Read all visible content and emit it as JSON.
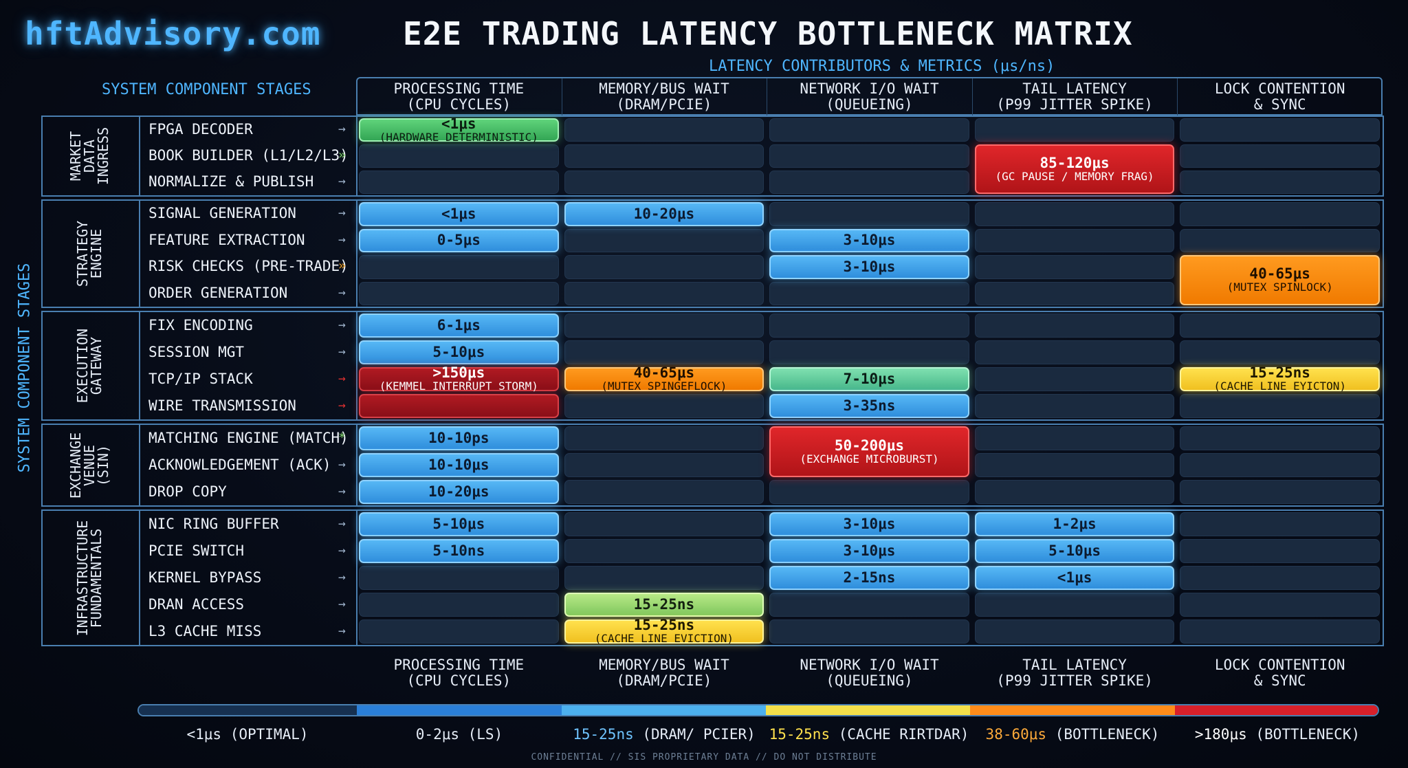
{
  "brand": "hftAdvisory.com",
  "title": "E2E TRADING LATENCY BOTTLENECK MATRIX",
  "subtitle": "LATENCY CONTRIBUTORS & METRICS (μs/ns)",
  "row_axis_label": "SYSTEM COMPONENT STAGES",
  "confidential": "CONFIDENTIAL // SIS PROPRIETARY DATA // DO NOT DISTRIBUTE",
  "chart_data": {
    "type": "heatmap",
    "title": "E2E TRADING LATENCY BOTTLENECK MATRIX",
    "columns": [
      {
        "line1": "PROCESSING TIME",
        "line2": "(CPU CYCLES)"
      },
      {
        "line1": "MEMORY/BUS WAIT",
        "line2": "(DRAM/PCIE)"
      },
      {
        "line1": "NETWORK I/O WAIT",
        "line2": "(QUEUEING)"
      },
      {
        "line1": "TAIL LATENCY",
        "line2": "(P99 JITTER SPIKE)"
      },
      {
        "line1": "LOCK CONTENTION",
        "line2": "& SYNC"
      }
    ],
    "groups": [
      {
        "lines": [
          "MARKET",
          "DATA",
          "INGRESS"
        ],
        "rows": [
          "FPGA DECODER",
          "BOOK BUILDER (L1/L2/L3)",
          "NORMALIZE & PUBLISH"
        ]
      },
      {
        "lines": [
          "STRATEGY",
          "ENGINE"
        ],
        "rows": [
          "SIGNAL GENERATION",
          "FEATURE EXTRACTION",
          "RISK CHECKS (PRE-TRADE)",
          "ORDER GENERATION"
        ]
      },
      {
        "lines": [
          "EXECUTION",
          "GATEWAY"
        ],
        "rows": [
          "FIX ENCODING",
          "SESSION MGT",
          "TCP/IP STACK",
          "WIRE TRANSMISSION"
        ]
      },
      {
        "lines": [
          "EXCHANGE",
          "VENUE",
          "(SIN)"
        ],
        "rows": [
          "MATCHING ENGINE (MATCH)",
          "ACKNOWLEDGEMENT (ACK)",
          "DROP COPY"
        ]
      },
      {
        "lines": [
          "INFRASTRUCTURE",
          "FUNDAMENTALS"
        ],
        "rows": [
          "NIC RING BUFFER",
          "PCIE SWITCH",
          "KERNEL BYPASS",
          "DRAN ACCESS",
          "L3 CACHE MISS"
        ]
      }
    ],
    "row_arrows": [
      "→",
      "»",
      "→",
      "→",
      "→",
      "»",
      "→",
      "→",
      "→",
      "→",
      "→",
      "*",
      "→",
      "→",
      "→",
      "→",
      "→",
      "→",
      "→"
    ],
    "arrow_colors": [
      "#9fb4cc",
      "#7fd06a",
      "#9fb4cc",
      "#9fb4cc",
      "#9fb4cc",
      "#f0a020",
      "#9fb4cc",
      "#9fb4cc",
      "#9fb4cc",
      "#e03030",
      "#e03030",
      "#7fd06a",
      "#9fb4cc",
      "#9fb4cc",
      "#9fb4cc",
      "#9fb4cc",
      "#9fb4cc",
      "#9fb4cc",
      "#9fb4cc"
    ],
    "cells": [
      {
        "row": 0,
        "col": 0,
        "span": 1,
        "value": "<1μs",
        "note": "(HARDWARE DETERMINISTIC)",
        "color": "green"
      },
      {
        "row": 1,
        "col": 3,
        "span": 2,
        "value": "85-120μs",
        "note": "(GC PAUSE / MEMORY FRAG)",
        "color": "red"
      },
      {
        "row": 3,
        "col": 0,
        "span": 1,
        "value": "<1μs",
        "note": "",
        "color": "blue"
      },
      {
        "row": 3,
        "col": 1,
        "span": 1,
        "value": "10-20μs",
        "note": "",
        "color": "blue"
      },
      {
        "row": 4,
        "col": 0,
        "span": 1,
        "value": "0-5μs",
        "note": "",
        "color": "blue"
      },
      {
        "row": 4,
        "col": 2,
        "span": 1,
        "value": "3-10μs",
        "note": "",
        "color": "blue"
      },
      {
        "row": 5,
        "col": 2,
        "span": 1,
        "value": "3-10μs",
        "note": "",
        "color": "blue"
      },
      {
        "row": 5,
        "col": 4,
        "span": 2,
        "value": "40-65μs",
        "note": "(MUTEX SPINLOCK)",
        "color": "orange"
      },
      {
        "row": 7,
        "col": 0,
        "span": 1,
        "value": "6-1μs",
        "note": "",
        "color": "blue"
      },
      {
        "row": 8,
        "col": 0,
        "span": 1,
        "value": "5-10μs",
        "note": "",
        "color": "blue"
      },
      {
        "row": 9,
        "col": 0,
        "span": 1,
        "value": ">150μs",
        "note": "(KEMMEL INTERRUPT STORM)",
        "color": "darkred"
      },
      {
        "row": 10,
        "col": 0,
        "span": 1,
        "value": "",
        "note": "",
        "color": "darkred"
      },
      {
        "row": 9,
        "col": 1,
        "span": 1,
        "value": "40-65μs",
        "note": "(MUTEX SPINGEFLOCK)",
        "color": "orange"
      },
      {
        "row": 9,
        "col": 2,
        "span": 1,
        "value": "7-10μs",
        "note": "",
        "color": "teal"
      },
      {
        "row": 10,
        "col": 2,
        "span": 1,
        "value": "3-35ns",
        "note": "",
        "color": "blue"
      },
      {
        "row": 9,
        "col": 4,
        "span": 1,
        "value": "15-25ns",
        "note": "(CACHE LINE EYICTON)",
        "color": "yellow"
      },
      {
        "row": 11,
        "col": 0,
        "span": 1,
        "value": "10-10ps",
        "note": "",
        "color": "blue"
      },
      {
        "row": 11,
        "col": 2,
        "span": 2,
        "value": "50-200μs",
        "note": "(EXCHANGE MICROBURST)",
        "color": "red"
      },
      {
        "row": 12,
        "col": 0,
        "span": 1,
        "value": "10-10μs",
        "note": "",
        "color": "blue"
      },
      {
        "row": 13,
        "col": 0,
        "span": 1,
        "value": "10-20μs",
        "note": "",
        "color": "blue"
      },
      {
        "row": 14,
        "col": 0,
        "span": 1,
        "value": "5-10μs",
        "note": "",
        "color": "blue"
      },
      {
        "row": 14,
        "col": 2,
        "span": 1,
        "value": "3-10μs",
        "note": "",
        "color": "blue"
      },
      {
        "row": 14,
        "col": 3,
        "span": 1,
        "value": "1-2μs",
        "note": "",
        "color": "blue"
      },
      {
        "row": 15,
        "col": 0,
        "span": 1,
        "value": "5-10ns",
        "note": "",
        "color": "blue"
      },
      {
        "row": 15,
        "col": 2,
        "span": 1,
        "value": "3-10μs",
        "note": "",
        "color": "blue"
      },
      {
        "row": 15,
        "col": 3,
        "span": 1,
        "value": "5-10μs",
        "note": "",
        "color": "blue"
      },
      {
        "row": 16,
        "col": 2,
        "span": 1,
        "value": "2-15ns",
        "note": "",
        "color": "blue"
      },
      {
        "row": 16,
        "col": 3,
        "span": 1,
        "value": "<1μs",
        "note": "",
        "color": "blue"
      },
      {
        "row": 17,
        "col": 1,
        "span": 1,
        "value": "15-25ns",
        "note": "",
        "color": "lime"
      },
      {
        "row": 18,
        "col": 1,
        "span": 1,
        "value": "15-25ns",
        "note": "(CACHE LINE EVICTION)",
        "color": "yellow"
      }
    ],
    "legend": [
      {
        "value": "<1μs",
        "label": " (OPTIMAL)",
        "color": "#e6edf7",
        "bar": "#163050"
      },
      {
        "value": "0-2μs",
        "label": " (LS)",
        "color": "#e6edf7",
        "bar": "#2a7fd8"
      },
      {
        "value": "15-25ns",
        "label": " (DRAM/ PCIER)",
        "color": "#6fc4ff",
        "bar": "#4cb0ee"
      },
      {
        "value": "15-25ns",
        "label": " (CACHE RIRTDAR)",
        "color": "#ffe14d",
        "bar": "#f4e04a"
      },
      {
        "value": "38-60μs",
        "label": " (BOTTLENECK)",
        "color": "#ffab3a",
        "bar": "#ff8c1a"
      },
      {
        "value": ">180μs",
        "label": " (BOTTLENECK)",
        "color": "#ffffff",
        "bar": "#d8202a"
      }
    ]
  }
}
